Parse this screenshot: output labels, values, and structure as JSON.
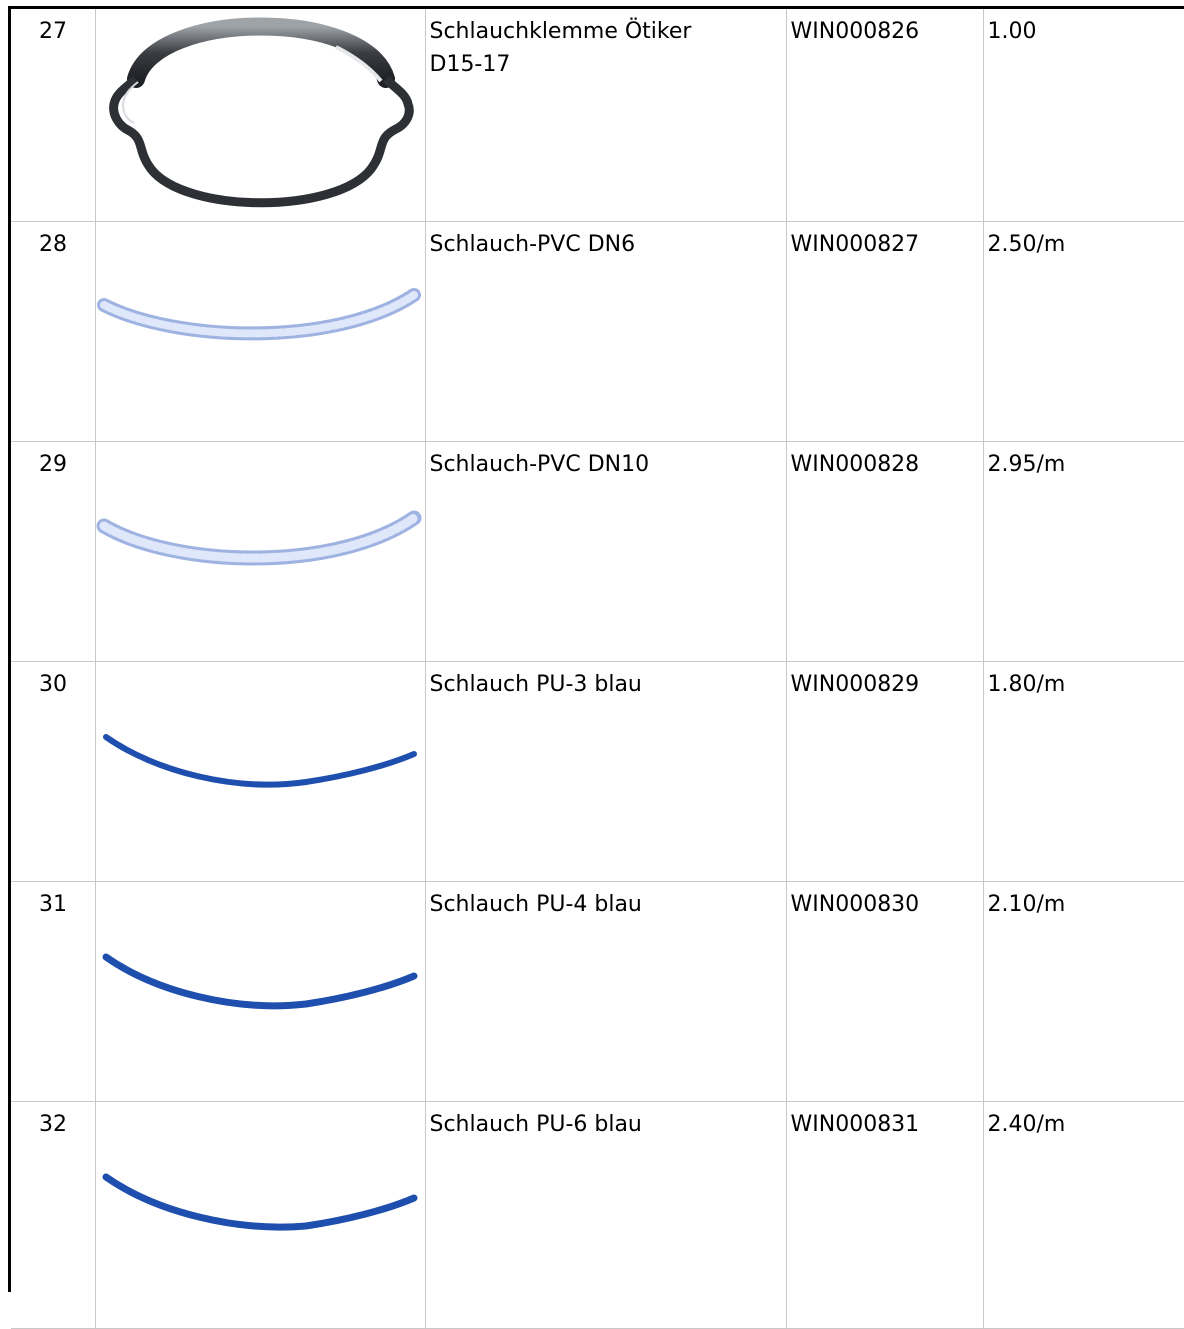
{
  "rows": [
    {
      "num": "27",
      "desc_line1": "Schlauchklemme Ötiker",
      "desc_line2": "D15-17",
      "article": "WIN000826",
      "price": "1.00",
      "image": "hose-clamp-icon"
    },
    {
      "num": "28",
      "desc_line1": "Schlauch-PVC DN6",
      "desc_line2": "",
      "article": "WIN000827",
      "price": "2.50/m",
      "image": "pvc-hose-icon"
    },
    {
      "num": "29",
      "desc_line1": "Schlauch-PVC DN10",
      "desc_line2": "",
      "article": "WIN000828",
      "price": "2.95/m",
      "image": "pvc-hose-icon"
    },
    {
      "num": "30",
      "desc_line1": "Schlauch PU-3 blau",
      "desc_line2": "",
      "article": "WIN000829",
      "price": "1.80/m",
      "image": "pu-hose-icon"
    },
    {
      "num": "31",
      "desc_line1": "Schlauch PU-4 blau",
      "desc_line2": "",
      "article": "WIN000830",
      "price": "2.10/m",
      "image": "pu-hose-icon"
    },
    {
      "num": "32",
      "desc_line1": "Schlauch PU-6 blau",
      "desc_line2": "",
      "article": "WIN000831",
      "price": "2.40/m",
      "image": "pu-hose-icon"
    }
  ],
  "colors": {
    "pvc_hose": "#b9c9ef",
    "pu_hose": "#1f4fae",
    "clamp": "#3a3d42"
  }
}
